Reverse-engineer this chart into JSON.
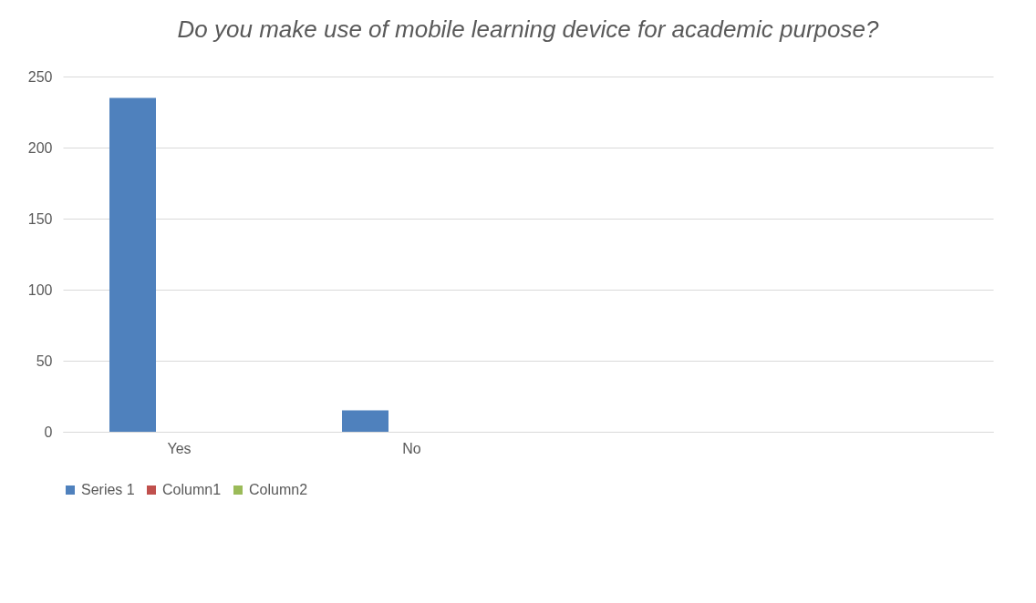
{
  "chart_data": {
    "type": "bar",
    "title": "Do you make use of mobile learning device for academic purpose?",
    "categories": [
      "Yes",
      "No",
      null,
      null
    ],
    "series": [
      {
        "name": "Series 1",
        "color": "#4f81bd",
        "values": [
          235,
          15,
          null,
          null
        ]
      },
      {
        "name": "Column1",
        "color": "#c0504d",
        "values": [
          null,
          null,
          null,
          null
        ]
      },
      {
        "name": "Column2",
        "color": "#9bbb59",
        "values": [
          null,
          null,
          null,
          null
        ]
      }
    ],
    "ylim": [
      0,
      250
    ],
    "yticks": [
      0,
      50,
      100,
      150,
      200,
      250
    ],
    "grid": "y",
    "legend": "bottom"
  }
}
